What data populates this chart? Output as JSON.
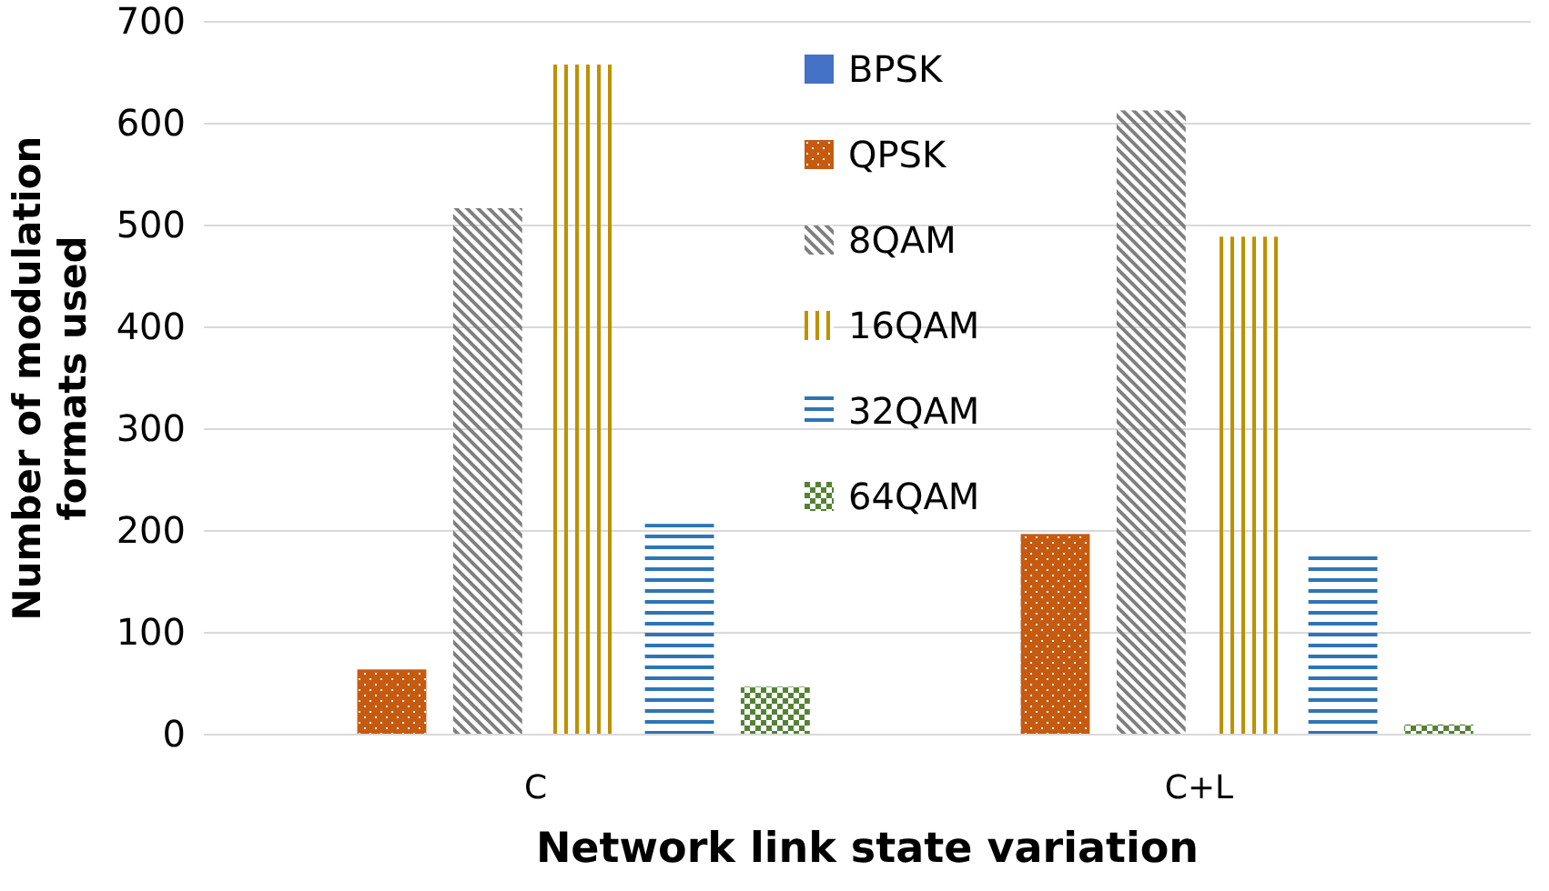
{
  "chart_data": {
    "type": "bar",
    "xlabel": "Network link state variation",
    "ylabel": "Number of modulation formats used",
    "categories": [
      "C",
      "C+L"
    ],
    "series": [
      {
        "name": "BPSK",
        "color": "#4472c4",
        "values": [
          0,
          0
        ]
      },
      {
        "name": "QPSK",
        "color": "#c55a11",
        "values": [
          64,
          197
        ]
      },
      {
        "name": "8QAM",
        "color": "#7f7f7f",
        "values": [
          517,
          613
        ]
      },
      {
        "name": "16QAM",
        "color": "#bf9000",
        "values": [
          658,
          489
        ]
      },
      {
        "name": "32QAM",
        "color": "#2e75b6",
        "values": [
          207,
          179
        ]
      },
      {
        "name": "64QAM",
        "color": "#548235",
        "values": [
          47,
          10
        ]
      }
    ],
    "ylim": [
      0,
      700
    ],
    "yticks": [
      0,
      100,
      200,
      300,
      400,
      500,
      600,
      700
    ],
    "grid": "y",
    "legend": "top"
  }
}
